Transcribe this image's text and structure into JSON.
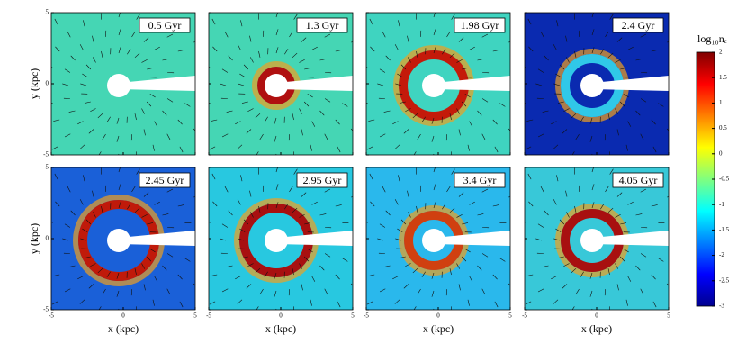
{
  "panels": [
    {
      "label": "0.5 Gyr"
    },
    {
      "label": "1.3 Gyr"
    },
    {
      "label": "1.98 Gyr"
    },
    {
      "label": "2.4 Gyr"
    },
    {
      "label": "2.45 Gyr"
    },
    {
      "label": "2.95 Gyr"
    },
    {
      "label": "3.4 Gyr"
    },
    {
      "label": "4.05 Gyr"
    }
  ],
  "axes": {
    "xlabel": "x (kpc)",
    "ylabel": "y (kpc)",
    "xlim": [
      -5,
      5
    ],
    "ylim": [
      -5,
      5
    ],
    "xticks": [
      -5,
      0,
      5
    ],
    "yticks": [
      -5,
      0,
      5
    ]
  },
  "colorbar": {
    "label": "log₁₀nₑ",
    "lim": [
      -3,
      2
    ],
    "ticks": [
      2,
      1.5,
      1,
      0.5,
      0,
      -0.5,
      -1,
      -1.5,
      -2,
      -2.5,
      -3
    ]
  }
}
